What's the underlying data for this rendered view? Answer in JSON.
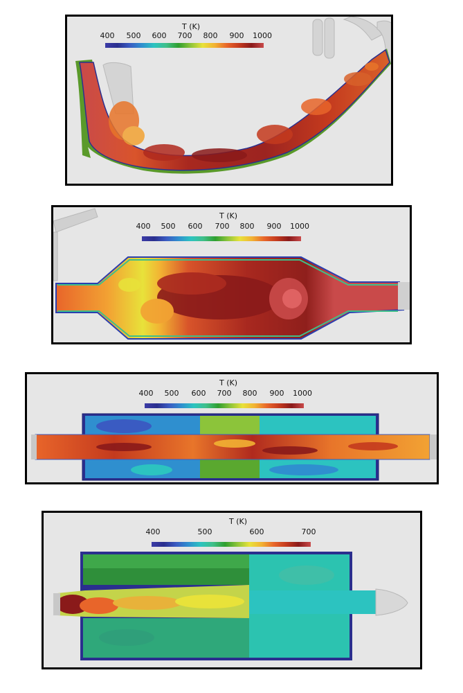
{
  "figure": {
    "panels": [
      {
        "id": "panel-1",
        "colorbar": {
          "title": "T (K)",
          "ticks": [
            "400",
            "500",
            "600",
            "700",
            "800",
            "900",
            "1000"
          ],
          "range": [
            400,
            1000
          ]
        }
      },
      {
        "id": "panel-2",
        "colorbar": {
          "title": "T (K)",
          "ticks": [
            "400",
            "500",
            "600",
            "700",
            "800",
            "900",
            "1000"
          ],
          "range": [
            400,
            1000
          ]
        }
      },
      {
        "id": "panel-3",
        "colorbar": {
          "title": "T (K)",
          "ticks": [
            "400",
            "500",
            "600",
            "700",
            "800",
            "900",
            "1000"
          ],
          "range": [
            400,
            1000
          ]
        }
      },
      {
        "id": "panel-4",
        "colorbar": {
          "title": "T (K)",
          "ticks": [
            "400",
            "500",
            "600",
            "700"
          ],
          "range": [
            400,
            700
          ]
        }
      }
    ],
    "colormap": [
      "#3b3ba6",
      "#2a2f8e",
      "#3a5bc2",
      "#2f8fcf",
      "#2cc3c0",
      "#3fbf8a",
      "#2f9f2f",
      "#8cc43a",
      "#e8e23a",
      "#f2b233",
      "#e8652a",
      "#c43a1e",
      "#8a1a1a",
      "#c94a4a"
    ]
  }
}
